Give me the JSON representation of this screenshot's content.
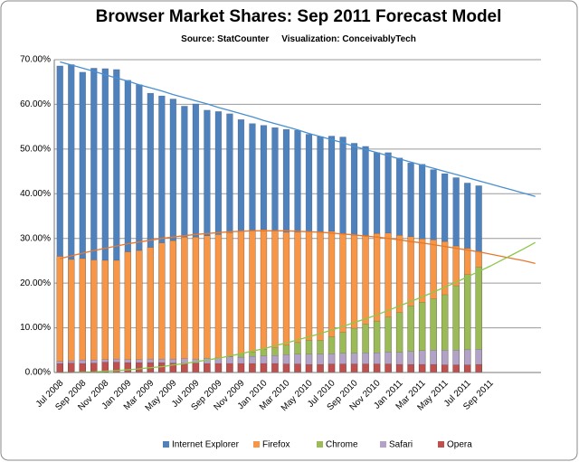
{
  "chart_data": {
    "type": "bar",
    "title": "Browser Market Shares: Sep 2011 Forecast Model",
    "subtitle": "Source: StatCounter     Visualization: ConceivablyTech",
    "categories": [
      "Jul 2008",
      null,
      "Sep 2008",
      null,
      "Nov 2008",
      null,
      "Jan 2009",
      null,
      "Mar 2009",
      null,
      "May 2009",
      null,
      "Jul 2009",
      null,
      "Sep 2009",
      null,
      "Nov 2009",
      null,
      "Jan 2010",
      null,
      "Mar 2010",
      null,
      "May 2010",
      null,
      "Jul 2010",
      null,
      "Sep 2010",
      null,
      "Nov 2010",
      null,
      "Jan 2011",
      null,
      "Mar 2011",
      null,
      "May 2011",
      null,
      "Jul 2011",
      null,
      "Sep 2011",
      null,
      null,
      null,
      null
    ],
    "series": [
      {
        "name": "Internet Explorer",
        "color": "#4f81bd",
        "values": [
          68.6,
          68.9,
          67.2,
          68.1,
          68.0,
          67.8,
          65.4,
          64.4,
          62.5,
          61.9,
          61.2,
          59.6,
          60.1,
          58.7,
          58.4,
          57.9,
          56.6,
          55.7,
          55.3,
          54.8,
          54.4,
          54.2,
          53.3,
          52.8,
          52.9,
          52.7,
          51.3,
          50.6,
          49.2,
          49.2,
          48.0,
          46.9,
          46.6,
          45.4,
          44.5,
          43.6,
          42.4,
          41.8,
          null,
          null,
          null,
          null,
          null
        ]
      },
      {
        "name": "Firefox",
        "color": "#f79646",
        "values": [
          26.0,
          25.3,
          25.5,
          25.2,
          25.1,
          25.1,
          27.0,
          27.3,
          28.0,
          29.0,
          29.5,
          30.3,
          30.3,
          30.6,
          30.9,
          31.3,
          31.6,
          31.8,
          32.0,
          31.6,
          31.4,
          31.4,
          31.5,
          31.5,
          31.6,
          31.0,
          30.7,
          30.7,
          31.1,
          31.2,
          30.7,
          30.4,
          29.9,
          29.7,
          29.3,
          28.3,
          27.8,
          27.0,
          null,
          null,
          null,
          null,
          null
        ]
      },
      {
        "name": "Chrome",
        "color": "#9bbb59",
        "values": [
          0,
          0,
          1.0,
          0.8,
          0.8,
          1.0,
          1.2,
          1.4,
          1.5,
          1.7,
          1.8,
          2.0,
          2.4,
          2.8,
          3.0,
          3.6,
          4.2,
          4.6,
          5.2,
          5.5,
          6.1,
          6.7,
          7.2,
          7.2,
          8.0,
          9.0,
          9.9,
          10.8,
          11.5,
          12.4,
          13.4,
          14.9,
          15.7,
          16.5,
          17.4,
          19.4,
          21.9,
          23.6,
          null,
          null,
          null,
          null,
          null
        ]
      },
      {
        "name": "Safari",
        "color": "#b3a2c7",
        "values": [
          2.5,
          2.6,
          2.8,
          2.8,
          2.9,
          3.0,
          2.9,
          2.9,
          3.0,
          3.0,
          3.0,
          3.1,
          3.0,
          3.2,
          3.3,
          3.5,
          3.4,
          3.6,
          3.7,
          3.8,
          4.0,
          4.1,
          4.1,
          4.1,
          4.2,
          4.3,
          4.3,
          4.4,
          4.4,
          4.6,
          4.5,
          4.7,
          4.9,
          5.0,
          5.0,
          5.0,
          5.1,
          5.2,
          null,
          null,
          null,
          null,
          null
        ]
      },
      {
        "name": "Opera",
        "color": "#c0504d",
        "values": [
          2.0,
          2.1,
          2.0,
          2.1,
          2.3,
          2.3,
          2.2,
          2.2,
          2.2,
          2.2,
          2.1,
          2.1,
          2.1,
          2.0,
          2.0,
          2.0,
          2.0,
          2.0,
          2.0,
          2.0,
          1.9,
          1.9,
          1.8,
          1.8,
          1.9,
          1.9,
          1.9,
          1.9,
          1.9,
          1.9,
          1.8,
          1.8,
          1.8,
          1.8,
          1.7,
          1.7,
          1.7,
          1.8,
          null,
          null,
          null,
          null,
          null
        ]
      }
    ],
    "trendlines": [
      {
        "color": "#4a8fd0",
        "values": [
          69.5,
          68.8,
          68.1,
          67.4,
          66.6,
          65.9,
          65.2,
          64.4,
          63.7,
          63.0,
          62.2,
          61.5,
          60.8,
          60.1,
          59.3,
          58.6,
          57.9,
          57.2,
          56.4,
          55.7,
          55.0,
          54.3,
          53.5,
          52.8,
          52.1,
          51.4,
          50.6,
          49.9,
          49.2,
          48.5,
          47.8,
          47.1,
          46.4,
          45.7,
          45.0,
          44.3,
          43.6,
          42.9,
          42.2,
          41.5,
          40.8,
          40.1,
          39.4
        ]
      },
      {
        "color": "#e8782c",
        "values": [
          25.5,
          26.1,
          26.7,
          27.3,
          27.8,
          28.3,
          28.8,
          29.2,
          29.6,
          30.0,
          30.3,
          30.6,
          30.9,
          31.1,
          31.3,
          31.5,
          31.6,
          31.7,
          31.7,
          31.7,
          31.7,
          31.6,
          31.5,
          31.4,
          31.2,
          31.0,
          30.8,
          30.5,
          30.3,
          30.0,
          29.7,
          29.3,
          29.0,
          28.6,
          28.2,
          27.8,
          27.4,
          27.0,
          26.5,
          26.0,
          25.5,
          25.0,
          24.4
        ]
      },
      {
        "color": "#8cc84a",
        "values": [
          0,
          0.0,
          0.1,
          0.1,
          0.3,
          0.4,
          0.6,
          0.8,
          1.1,
          1.3,
          1.7,
          2.0,
          2.4,
          2.8,
          3.2,
          3.7,
          4.2,
          4.8,
          5.3,
          6.0,
          6.6,
          7.3,
          8.0,
          8.7,
          9.5,
          10.3,
          11.2,
          12.0,
          12.9,
          13.9,
          14.9,
          15.9,
          16.9,
          18.0,
          19.1,
          20.2,
          21.4,
          22.6,
          23.8,
          25.1,
          26.4,
          27.7,
          29.1
        ]
      }
    ],
    "ylim": [
      0,
      70
    ],
    "yticks": [
      {
        "value": 0,
        "label": "0.00%"
      },
      {
        "value": 10,
        "label": "10.00%"
      },
      {
        "value": 20,
        "label": "20.00%"
      },
      {
        "value": 30,
        "label": "30.00%"
      },
      {
        "value": 40,
        "label": "40.00%"
      },
      {
        "value": 50,
        "label": "50.00%"
      },
      {
        "value": 60,
        "label": "60.00%"
      },
      {
        "value": 70,
        "label": "70.00%"
      }
    ],
    "grid": true,
    "legend": "bottom"
  }
}
